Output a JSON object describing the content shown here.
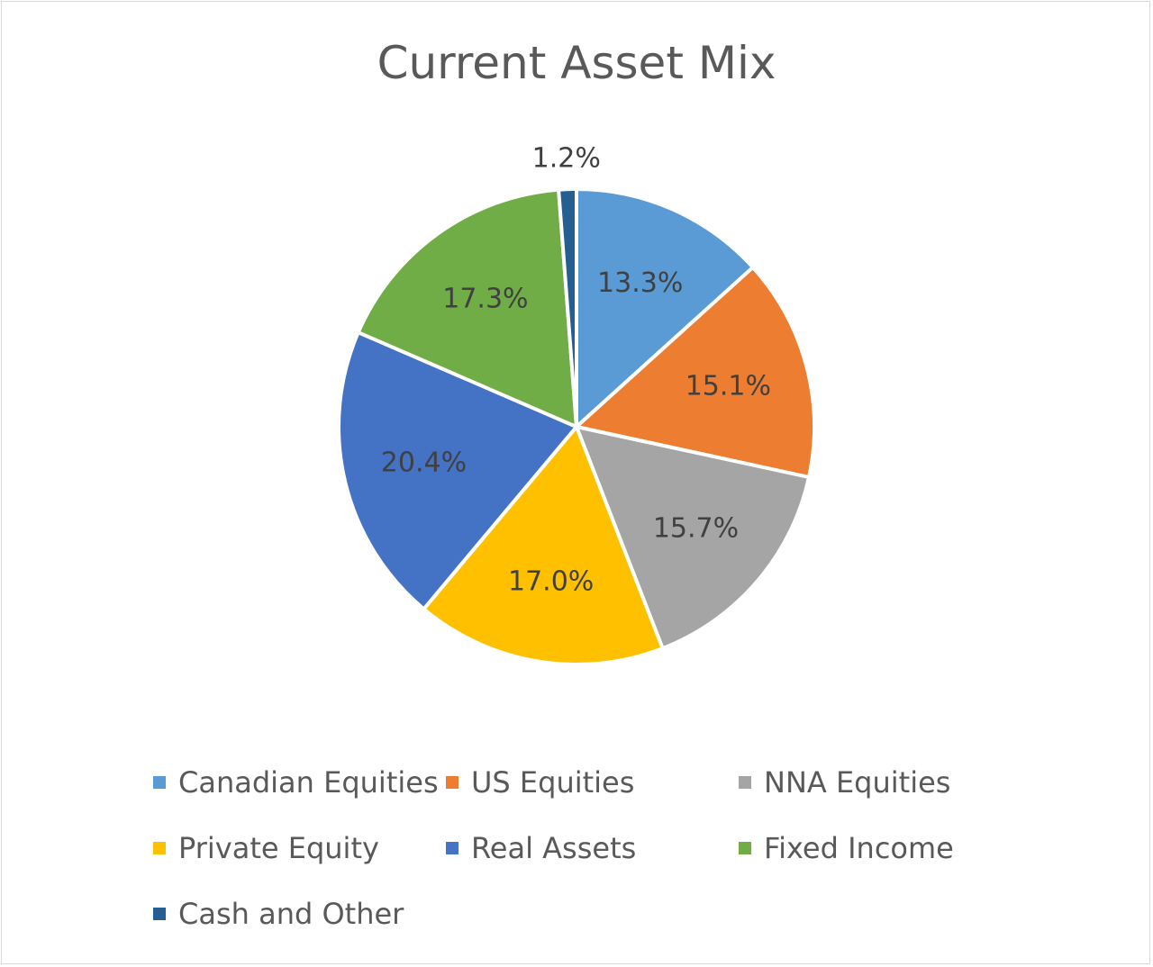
{
  "chart_data": {
    "type": "pie",
    "title": "Current Asset Mix",
    "slices": [
      {
        "label": "Canadian Equities",
        "value": 13.3,
        "value_label": "13.3%",
        "color": "#5b9bd5"
      },
      {
        "label": "US Equities",
        "value": 15.1,
        "value_label": "15.1%",
        "color": "#ed7d31"
      },
      {
        "label": "NNA Equities",
        "value": 15.7,
        "value_label": "15.7%",
        "color": "#a5a5a5"
      },
      {
        "label": "Private Equity",
        "value": 17.0,
        "value_label": "17.0%",
        "color": "#ffc000"
      },
      {
        "label": "Real Assets",
        "value": 20.4,
        "value_label": "20.4%",
        "color": "#4472c4"
      },
      {
        "label": "Fixed Income",
        "value": 17.3,
        "value_label": "17.3%",
        "color": "#70ad47"
      },
      {
        "label": "Cash and Other",
        "value": 1.2,
        "value_label": "1.2%",
        "color": "#255e91"
      }
    ],
    "legend_position": "bottom",
    "label_color": "#404040",
    "text_color": "#595959"
  }
}
